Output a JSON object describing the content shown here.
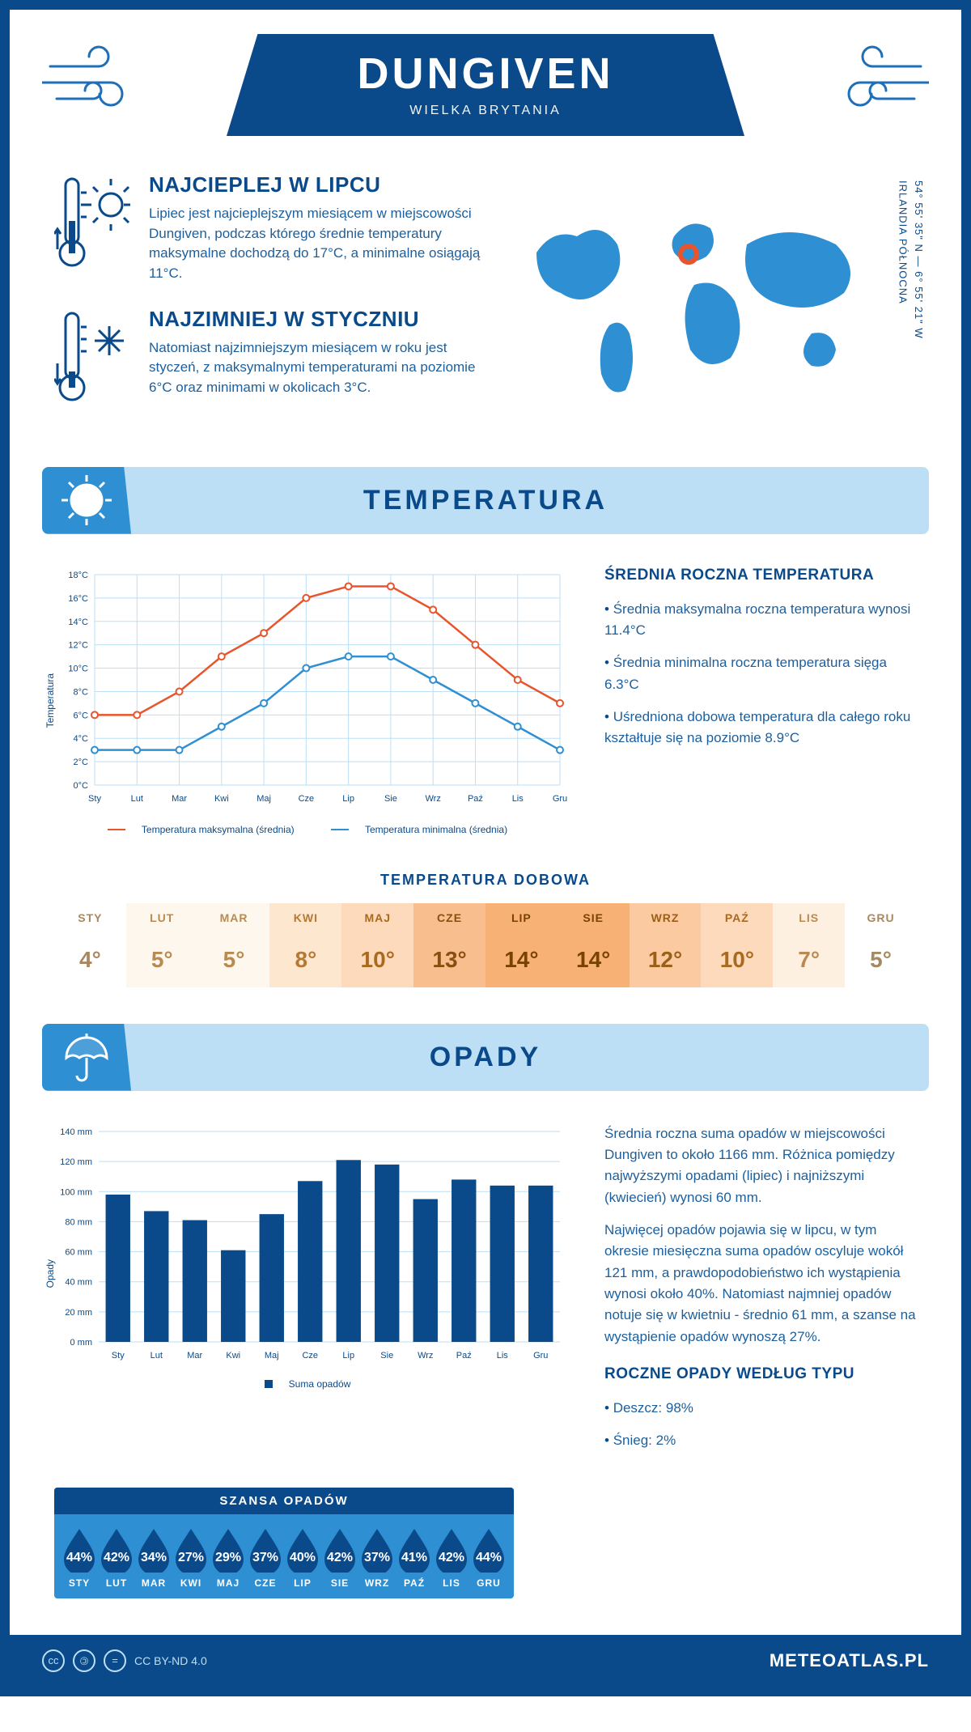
{
  "header": {
    "title": "DUNGIVEN",
    "subtitle": "WIELKA BRYTANIA"
  },
  "coords": {
    "lat": "54° 55' 35\" N — 6° 55' 21\" W",
    "region": "IRLANDIA PÓŁNOCNA"
  },
  "intro": {
    "hot": {
      "title": "NAJCIEPLEJ W LIPCU",
      "body": "Lipiec jest najcieplejszym miesiącem w miejscowości Dungiven, podczas którego średnie temperatury maksymalne dochodzą do 17°C, a minimalne osiągają 11°C."
    },
    "cold": {
      "title": "NAJZIMNIEJ W STYCZNIU",
      "body": "Natomiast najzimniejszym miesiącem w roku jest styczeń, z maksymalnymi temperaturami na poziomie 6°C oraz minimami w okolicach 3°C."
    }
  },
  "sections": {
    "temperature": "TEMPERATURA",
    "precipitation": "OPADY"
  },
  "temp_chart": {
    "type": "line",
    "ylabel": "Temperatura",
    "ylim": [
      0,
      18
    ],
    "ytick_step": 2,
    "ytick_suffix": "°C",
    "months": [
      "Sty",
      "Lut",
      "Mar",
      "Kwi",
      "Maj",
      "Cze",
      "Lip",
      "Sie",
      "Wrz",
      "Paź",
      "Lis",
      "Gru"
    ],
    "max_series": [
      6,
      6,
      8,
      11,
      13,
      16,
      17,
      17,
      15,
      12,
      9,
      7
    ],
    "min_series": [
      3,
      3,
      3,
      5,
      7,
      10,
      11,
      11,
      9,
      7,
      5,
      3
    ],
    "max_color": "#e8552d",
    "min_color": "#2e8fd3",
    "legend_max": "Temperatura maksymalna (średnia)",
    "legend_min": "Temperatura minimalna (średnia)",
    "grid_color": "#bcdff6",
    "background": "#ffffff"
  },
  "temp_side": {
    "heading": "ŚREDNIA ROCZNA TEMPERATURA",
    "bullets": [
      "Średnia maksymalna roczna temperatura wynosi 11.4°C",
      "Średnia minimalna roczna temperatura sięga 6.3°C",
      "Uśredniona dobowa temperatura dla całego roku kształtuje się na poziomie 8.9°C"
    ]
  },
  "daily_temp": {
    "title": "TEMPERATURA DOBOWA",
    "months": [
      "STY",
      "LUT",
      "MAR",
      "KWI",
      "MAJ",
      "CZE",
      "LIP",
      "SIE",
      "WRZ",
      "PAŹ",
      "LIS",
      "GRU"
    ],
    "values": [
      "4°",
      "5°",
      "5°",
      "8°",
      "10°",
      "13°",
      "14°",
      "14°",
      "12°",
      "10°",
      "7°",
      "5°"
    ],
    "cell_bg": [
      "#ffffff",
      "#fef7ee",
      "#fef7ee",
      "#fde7cf",
      "#fddabb",
      "#f9be8d",
      "#f8b175",
      "#f8b175",
      "#fccaa0",
      "#fddabb",
      "#fef0e1",
      "#ffffff"
    ],
    "cell_fg": [
      "#a88860",
      "#b98a50",
      "#b98a50",
      "#b47a35",
      "#a96a20",
      "#8a4f10",
      "#7a4200",
      "#7a4200",
      "#9a5f18",
      "#a96a20",
      "#b98a50",
      "#a88860"
    ]
  },
  "precip_chart": {
    "type": "bar",
    "ylabel": "Opady",
    "ylim": [
      0,
      140
    ],
    "ytick_step": 20,
    "ytick_suffix": " mm",
    "months": [
      "Sty",
      "Lut",
      "Mar",
      "Kwi",
      "Maj",
      "Cze",
      "Lip",
      "Sie",
      "Wrz",
      "Paź",
      "Lis",
      "Gru"
    ],
    "values": [
      98,
      87,
      81,
      61,
      85,
      107,
      121,
      118,
      95,
      108,
      104,
      104
    ],
    "bar_color": "#0a4a8a",
    "legend": "Suma opadów",
    "grid_color": "#bcdff6"
  },
  "precip_side": {
    "p1": "Średnia roczna suma opadów w miejscowości Dungiven to około 1166 mm. Różnica pomiędzy najwyższymi opadami (lipiec) i najniższymi (kwiecień) wynosi 60 mm.",
    "p2": "Najwięcej opadów pojawia się w lipcu, w tym okresie miesięczna suma opadów oscyluje wokół 121 mm, a prawdopodobieństwo ich wystąpienia wynosi około 40%. Natomiast najmniej opadów notuje się w kwietniu - średnio 61 mm, a szanse na wystąpienie opadów wynoszą 27%.",
    "heading": "ROCZNE OPADY WEDŁUG TYPU",
    "bullets": [
      "Deszcz: 98%",
      "Śnieg: 2%"
    ]
  },
  "rain_chance": {
    "title": "SZANSA OPADÓW",
    "months": [
      "STY",
      "LUT",
      "MAR",
      "KWI",
      "MAJ",
      "CZE",
      "LIP",
      "SIE",
      "WRZ",
      "PAŹ",
      "LIS",
      "GRU"
    ],
    "values": [
      "44%",
      "42%",
      "34%",
      "27%",
      "29%",
      "37%",
      "40%",
      "42%",
      "37%",
      "41%",
      "42%",
      "44%"
    ],
    "drop_fill": "#0a4a8a"
  },
  "footer": {
    "license": "CC BY-ND 4.0",
    "site": "METEOATLAS.PL"
  }
}
